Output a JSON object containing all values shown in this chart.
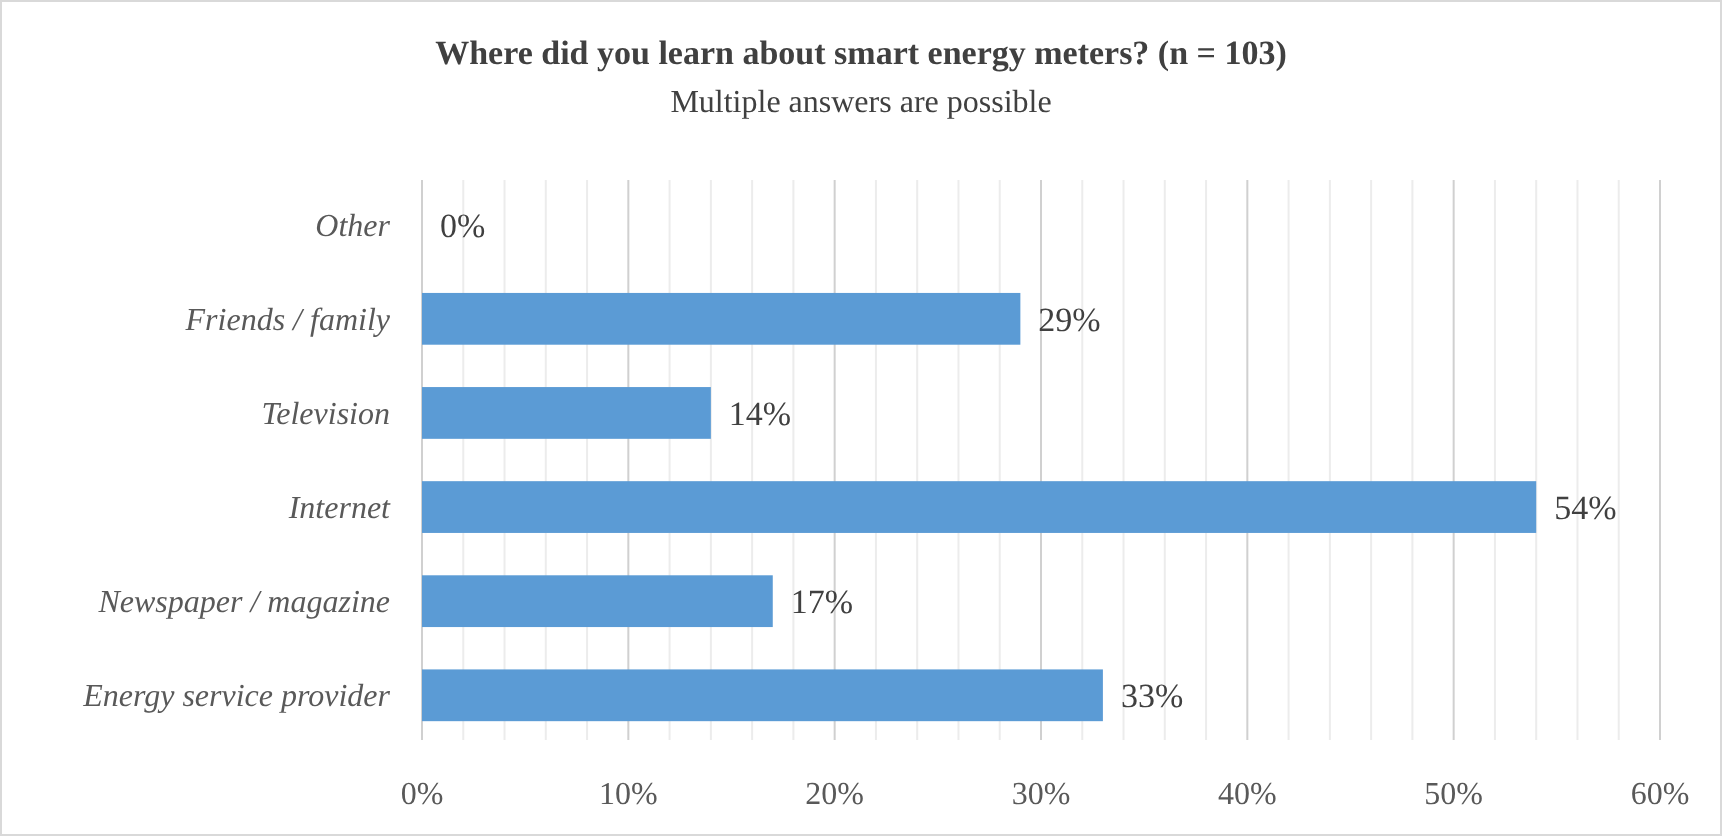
{
  "chart_data": {
    "type": "bar",
    "orientation": "horizontal",
    "title": "Where did you learn about smart energy meters? (n = 103)",
    "subtitle": "Multiple answers are possible",
    "categories": [
      "Other",
      "Friends / family",
      "Television",
      "Internet",
      "Newspaper / magazine",
      "Energy service provider"
    ],
    "values": [
      0,
      29,
      14,
      54,
      17,
      33
    ],
    "color": "#5b9bd5",
    "value_labels": [
      "0%",
      "29%",
      "14%",
      "54%",
      "17%",
      "33%"
    ],
    "xlim": [
      0,
      60
    ],
    "xticks": [
      {
        "value": 0,
        "label": "0%"
      },
      {
        "value": 2,
        "label": null
      },
      {
        "value": 4,
        "label": null
      },
      {
        "value": 6,
        "label": null
      },
      {
        "value": 8,
        "label": null
      },
      {
        "value": 10,
        "label": "10%"
      },
      {
        "value": 12,
        "label": null
      },
      {
        "value": 14,
        "label": null
      },
      {
        "value": 16,
        "label": null
      },
      {
        "value": 18,
        "label": null
      },
      {
        "value": 20,
        "label": "20%"
      },
      {
        "value": 22,
        "label": null
      },
      {
        "value": 24,
        "label": null
      },
      {
        "value": 26,
        "label": null
      },
      {
        "value": 28,
        "label": null
      },
      {
        "value": 30,
        "label": "30%"
      },
      {
        "value": 32,
        "label": null
      },
      {
        "value": 34,
        "label": null
      },
      {
        "value": 36,
        "label": null
      },
      {
        "value": 38,
        "label": null
      },
      {
        "value": 40,
        "label": "40%"
      },
      {
        "value": 42,
        "label": null
      },
      {
        "value": 44,
        "label": null
      },
      {
        "value": 46,
        "label": null
      },
      {
        "value": 48,
        "label": null
      },
      {
        "value": 50,
        "label": "50%"
      },
      {
        "value": 52,
        "label": null
      },
      {
        "value": 54,
        "label": null
      },
      {
        "value": 56,
        "label": null
      },
      {
        "value": 58,
        "label": null
      },
      {
        "value": 60,
        "label": "60%"
      }
    ],
    "grid": "x"
  }
}
